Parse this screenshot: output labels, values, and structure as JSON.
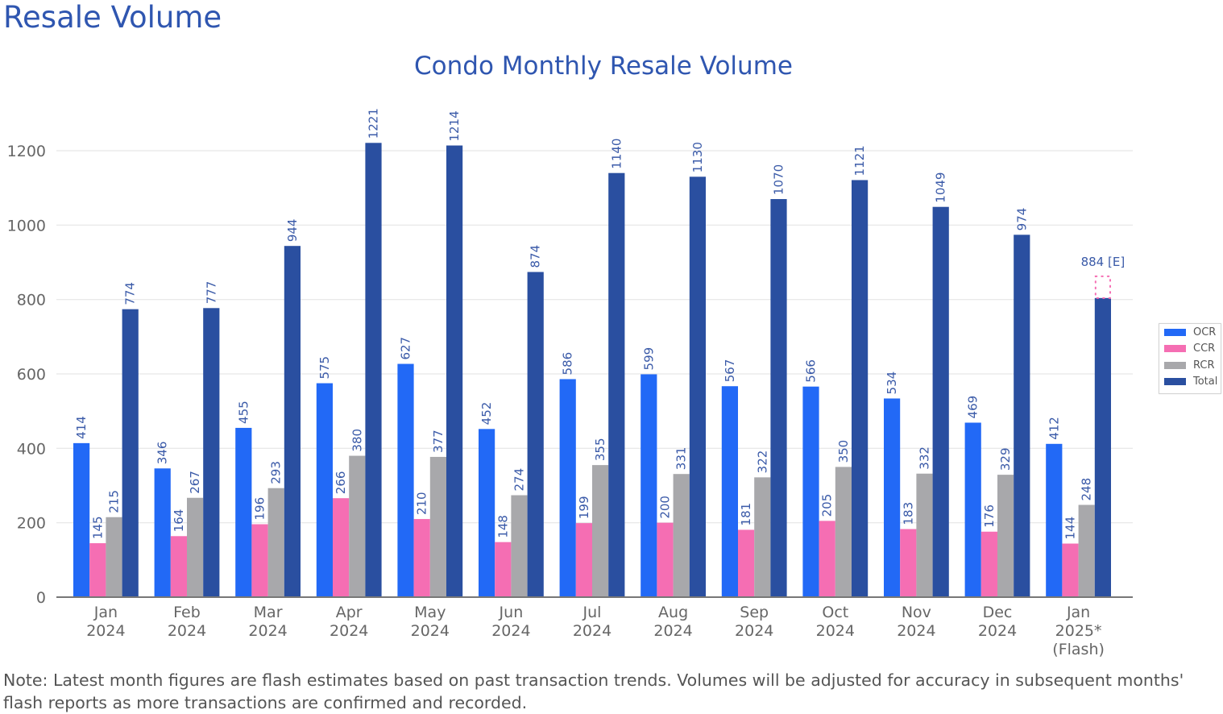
{
  "page": {
    "title": "Resale Volume",
    "note": "Note: Latest month figures are flash estimates based on past transaction trends. Volumes will be adjusted for accuracy in subsequent months' flash reports as more transactions are confirmed and recorded."
  },
  "colors": {
    "OCR": "#2269f6",
    "CCR": "#f56eb3",
    "RCR": "#a8a8ab",
    "Total": "#2a4fa0",
    "title": "#2f56b0",
    "label": "#3a5aa8",
    "estimate_outline": "#f56eb3"
  },
  "chart_data": {
    "type": "bar",
    "title": "Condo Monthly Resale Volume",
    "xlabel": "",
    "ylabel": "",
    "ylim": [
      0,
      1300
    ],
    "yticks": [
      0,
      200,
      400,
      600,
      800,
      1000,
      1200
    ],
    "grid": true,
    "legend_position": "right",
    "categories": [
      [
        "Jan",
        "2024"
      ],
      [
        "Feb",
        "2024"
      ],
      [
        "Mar",
        "2024"
      ],
      [
        "Apr",
        "2024"
      ],
      [
        "May",
        "2024"
      ],
      [
        "Jun",
        "2024"
      ],
      [
        "Jul",
        "2024"
      ],
      [
        "Aug",
        "2024"
      ],
      [
        "Sep",
        "2024"
      ],
      [
        "Oct",
        "2024"
      ],
      [
        "Nov",
        "2024"
      ],
      [
        "Dec",
        "2024"
      ],
      [
        "Jan",
        "2025*",
        "(Flash)"
      ]
    ],
    "series": [
      {
        "name": "OCR",
        "values": [
          414,
          346,
          455,
          575,
          627,
          452,
          586,
          599,
          567,
          566,
          534,
          469,
          412
        ]
      },
      {
        "name": "CCR",
        "values": [
          145,
          164,
          196,
          266,
          210,
          148,
          199,
          200,
          181,
          205,
          183,
          176,
          144
        ]
      },
      {
        "name": "RCR",
        "values": [
          215,
          267,
          293,
          380,
          377,
          274,
          355,
          331,
          322,
          350,
          332,
          329,
          248
        ]
      },
      {
        "name": "Total",
        "values": [
          774,
          777,
          944,
          1221,
          1214,
          874,
          1140,
          1130,
          1070,
          1121,
          1049,
          974,
          804
        ]
      }
    ],
    "estimate": {
      "category_index": 12,
      "series": "Total",
      "confirmed_value": 804,
      "estimated_value": 884,
      "label": "884 [E]"
    },
    "hidden_labels": [
      {
        "series": "Total",
        "category_index": 12
      }
    ]
  }
}
